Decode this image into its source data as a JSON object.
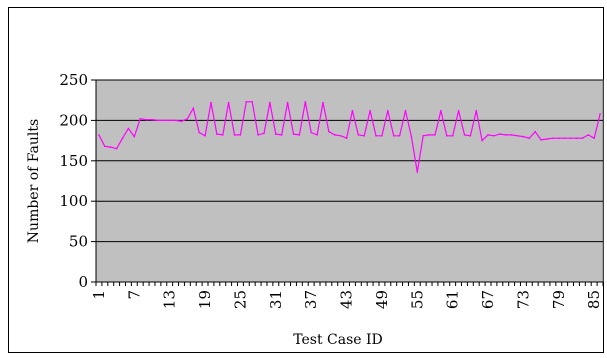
{
  "chart_data": {
    "type": "line",
    "title": "",
    "xlabel": "Test Case ID",
    "ylabel": "Number of Faults",
    "ylim": [
      0,
      250
    ],
    "yticks": [
      0,
      50,
      100,
      150,
      200,
      250
    ],
    "xticks": [
      1,
      7,
      13,
      19,
      25,
      31,
      37,
      43,
      49,
      55,
      61,
      67,
      73,
      79,
      85
    ],
    "grid": true,
    "legend": "none",
    "plot_background": "#c0c0c0",
    "line_color": "#ff00ff",
    "series": [
      {
        "x": [
          1,
          2,
          3,
          4,
          5,
          6,
          7,
          8,
          9,
          10,
          11,
          12,
          13,
          14,
          15,
          16,
          17,
          18,
          19,
          20,
          21,
          22,
          23,
          24,
          25,
          26,
          27,
          28,
          29,
          30,
          31,
          32,
          33,
          34,
          35,
          36,
          37,
          38,
          39,
          40,
          41,
          42,
          43,
          44,
          45,
          46,
          47,
          48,
          49,
          50,
          51,
          52,
          53,
          54,
          55,
          56,
          57,
          58,
          59,
          60,
          61,
          62,
          63,
          64,
          65,
          66,
          67,
          68,
          69,
          70,
          71,
          72,
          73,
          74,
          75,
          76,
          77,
          78,
          79,
          80,
          81,
          82,
          83,
          84,
          85,
          86
        ],
        "values": [
          182,
          168,
          167,
          165,
          178,
          190,
          180,
          202,
          201,
          201,
          200,
          200,
          200,
          200,
          199,
          202,
          215,
          185,
          181,
          222,
          183,
          182,
          222,
          182,
          182,
          223,
          223,
          182,
          184,
          222,
          183,
          182,
          222,
          183,
          182,
          223,
          185,
          182,
          222,
          186,
          182,
          181,
          178,
          212,
          182,
          181,
          212,
          181,
          181,
          212,
          181,
          181,
          212,
          180,
          136,
          181,
          182,
          182,
          212,
          181,
          181,
          212,
          182,
          181,
          212,
          175,
          182,
          181,
          183,
          182,
          182,
          181,
          180,
          178,
          186,
          176,
          177,
          178,
          178,
          178,
          178,
          178,
          178,
          182,
          178,
          208
        ]
      }
    ]
  }
}
